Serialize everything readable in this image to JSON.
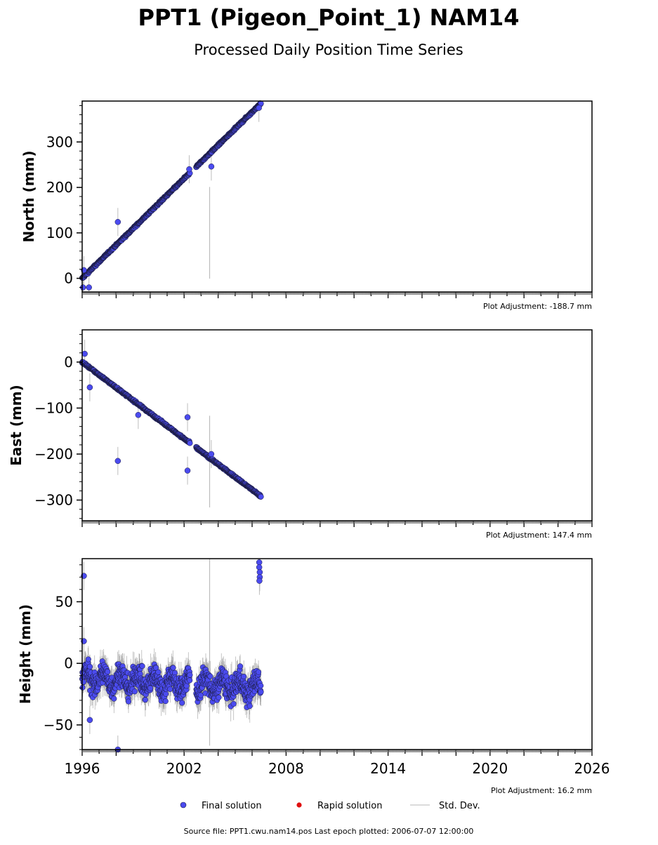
{
  "header": {
    "title": "PPT1 (Pigeon_Point_1) NAM14",
    "subtitle": "Processed Daily Position Time Series"
  },
  "footer": {
    "source": "Source file: PPT1.cwu.nam14.pos  Last epoch plotted: 2006-07-07 12:00:00"
  },
  "legend": {
    "placement": "bottom-center",
    "final_label": "Final solution",
    "rapid_label": "Rapid solution",
    "std_label": "Std. Dev."
  },
  "colors": {
    "final": "#4b4bef",
    "final_edge": "#1a1a3a",
    "rapid": "#e01010",
    "std": "#bdbdbd",
    "axis": "#000000"
  },
  "chart_data": [
    {
      "type": "scatter",
      "name": "north",
      "ylabel": "North (mm)",
      "adjustment": "Plot Adjustment: -188.7 mm",
      "xlim": [
        1996,
        2026
      ],
      "ylim": [
        -30,
        390
      ],
      "yticks": [
        0,
        100,
        200,
        300
      ],
      "trend": {
        "start_year": 1996.0,
        "end_year": 2006.52,
        "start": 0,
        "end": 385
      },
      "outliers": [
        {
          "x": 1996.1,
          "y": 18
        },
        {
          "x": 1996.05,
          "y": -20
        },
        {
          "x": 1996.4,
          "y": -20
        },
        {
          "x": 1998.1,
          "y": 124
        },
        {
          "x": 2002.3,
          "y": 240
        },
        {
          "x": 2003.6,
          "y": 246
        },
        {
          "x": 2006.4,
          "y": 375
        }
      ]
    },
    {
      "type": "scatter",
      "name": "east",
      "ylabel": "East (mm)",
      "adjustment": "Plot Adjustment: 147.4 mm",
      "xlim": [
        1996,
        2026
      ],
      "ylim": [
        -345,
        70
      ],
      "yticks": [
        -300,
        -200,
        -100,
        0
      ],
      "trend": {
        "start_year": 1996.0,
        "end_year": 2006.52,
        "start": 0,
        "end": -292
      },
      "outliers": [
        {
          "x": 1996.15,
          "y": 18
        },
        {
          "x": 1996.45,
          "y": -55
        },
        {
          "x": 1998.1,
          "y": -215
        },
        {
          "x": 1999.3,
          "y": -115
        },
        {
          "x": 2002.2,
          "y": -120
        },
        {
          "x": 2002.2,
          "y": -236
        },
        {
          "x": 2003.6,
          "y": -200
        }
      ]
    },
    {
      "type": "scatter",
      "name": "height",
      "ylabel": "Height (mm)",
      "adjustment": "Plot Adjustment: 16.2 mm",
      "xlim": [
        1996,
        2026
      ],
      "ylim": [
        -70,
        85
      ],
      "yticks": [
        -50,
        0,
        50
      ],
      "xticks": [
        1996,
        2002,
        2008,
        2014,
        2020,
        2026
      ],
      "trend": {
        "start_year": 1996.0,
        "end_year": 2006.52,
        "start": -12,
        "end": -20
      },
      "outliers": [
        {
          "x": 1996.1,
          "y": 71
        },
        {
          "x": 1996.1,
          "y": 18
        },
        {
          "x": 1996.45,
          "y": -46
        },
        {
          "x": 1998.1,
          "y": -70
        },
        {
          "x": 2006.42,
          "y": 82
        },
        {
          "x": 2006.42,
          "y": 78
        },
        {
          "x": 2006.45,
          "y": 74
        },
        {
          "x": 2006.45,
          "y": 70
        },
        {
          "x": 2006.43,
          "y": 67
        }
      ]
    }
  ]
}
